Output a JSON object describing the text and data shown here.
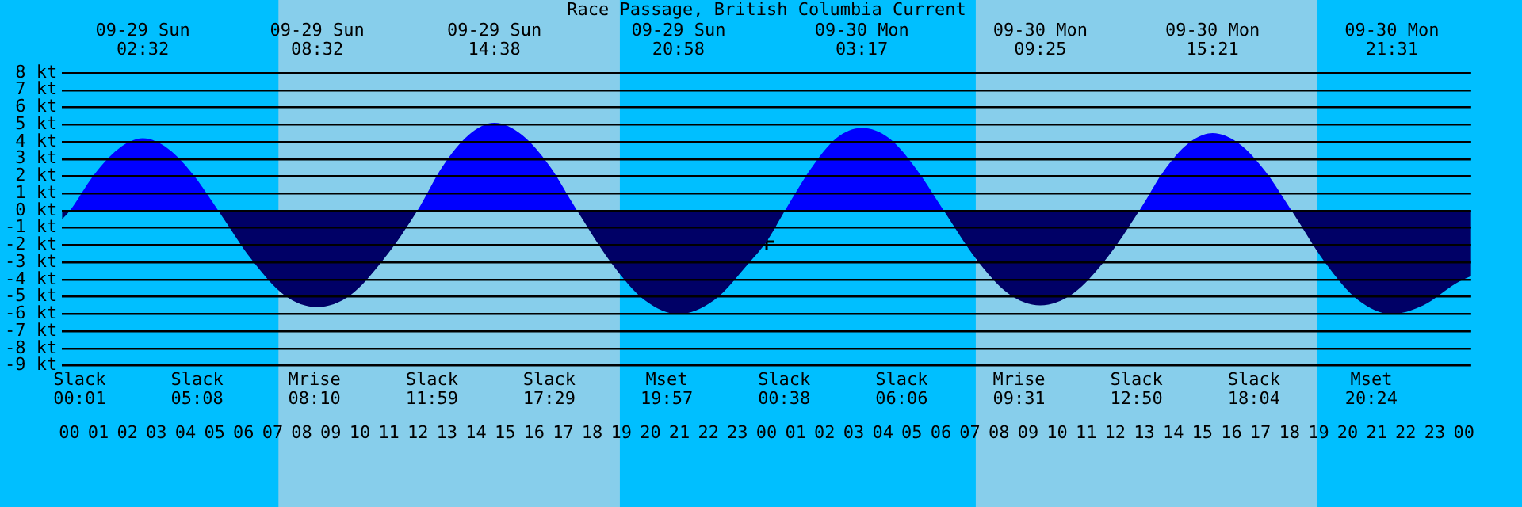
{
  "chart_data": {
    "type": "area",
    "title": "Race Passage, British Columbia Current",
    "x": [
      -0.25,
      0.02,
      0.86,
      1.7,
      2.53,
      3.4,
      4.26,
      5.13,
      6.26,
      7.4,
      8.53,
      9.68,
      10.83,
      11.98,
      12.86,
      13.75,
      14.63,
      15.58,
      16.53,
      17.48,
      18.64,
      19.81,
      20.97,
      22.19,
      23.41,
      24.0,
      24.63,
      25.51,
      26.4,
      27.28,
      28.22,
      29.16,
      30.1,
      31.21,
      32.31,
      33.42,
      34.56,
      35.69,
      36.83,
      37.67,
      38.51,
      39.35,
      40.26,
      41.16,
      42.07,
      43.22,
      44.37,
      45.52,
      46.6,
      47.75,
      48.25
    ],
    "series": [
      {
        "color": "#0000ff",
        "values": [
          -0.5,
          0,
          2.1,
          3.6,
          4.2,
          3.6,
          2.1,
          0,
          -2.8,
          -4.9,
          -5.6,
          -4.9,
          -2.8,
          0,
          2.6,
          4.4,
          5.1,
          4.4,
          2.6,
          0,
          -3.0,
          -5.2,
          -6.0,
          -5.2,
          -3.0,
          -1.8,
          0,
          2.4,
          4.2,
          4.8,
          4.2,
          2.4,
          0,
          -2.8,
          -4.8,
          -5.5,
          -4.8,
          -2.8,
          0,
          2.3,
          3.9,
          4.5,
          3.9,
          2.3,
          0,
          -3.0,
          -5.2,
          -6.0,
          -5.5,
          -4.2,
          -3.8
        ]
      },
      {
        "type": "scatter",
        "marker": "cross",
        "color": "#000000",
        "x": [
          24.0
        ],
        "values": [
          -1.8
        ]
      }
    ],
    "xlim": [
      -0.25,
      48.25
    ],
    "xticks": [
      {
        "value": 0,
        "label": "00"
      },
      {
        "value": 1,
        "label": "01"
      },
      {
        "value": 2,
        "label": "02"
      },
      {
        "value": 3,
        "label": "03"
      },
      {
        "value": 4,
        "label": "04"
      },
      {
        "value": 5,
        "label": "05"
      },
      {
        "value": 6,
        "label": "06"
      },
      {
        "value": 7,
        "label": "07"
      },
      {
        "value": 8,
        "label": "08"
      },
      {
        "value": 9,
        "label": "09"
      },
      {
        "value": 10,
        "label": "10"
      },
      {
        "value": 11,
        "label": "11"
      },
      {
        "value": 12,
        "label": "12"
      },
      {
        "value": 13,
        "label": "13"
      },
      {
        "value": 14,
        "label": "14"
      },
      {
        "value": 15,
        "label": "15"
      },
      {
        "value": 16,
        "label": "16"
      },
      {
        "value": 17,
        "label": "17"
      },
      {
        "value": 18,
        "label": "18"
      },
      {
        "value": 19,
        "label": "19"
      },
      {
        "value": 20,
        "label": "20"
      },
      {
        "value": 21,
        "label": "21"
      },
      {
        "value": 22,
        "label": "22"
      },
      {
        "value": 23,
        "label": "23"
      },
      {
        "value": 24,
        "label": "00"
      },
      {
        "value": 25,
        "label": "01"
      },
      {
        "value": 26,
        "label": "02"
      },
      {
        "value": 27,
        "label": "03"
      },
      {
        "value": 28,
        "label": "04"
      },
      {
        "value": 29,
        "label": "05"
      },
      {
        "value": 30,
        "label": "06"
      },
      {
        "value": 31,
        "label": "07"
      },
      {
        "value": 32,
        "label": "08"
      },
      {
        "value": 33,
        "label": "09"
      },
      {
        "value": 34,
        "label": "10"
      },
      {
        "value": 35,
        "label": "11"
      },
      {
        "value": 36,
        "label": "12"
      },
      {
        "value": 37,
        "label": "13"
      },
      {
        "value": 38,
        "label": "14"
      },
      {
        "value": 39,
        "label": "15"
      },
      {
        "value": 40,
        "label": "16"
      },
      {
        "value": 41,
        "label": "17"
      },
      {
        "value": 42,
        "label": "18"
      },
      {
        "value": 43,
        "label": "19"
      },
      {
        "value": 44,
        "label": "20"
      },
      {
        "value": 45,
        "label": "21"
      },
      {
        "value": 46,
        "label": "22"
      },
      {
        "value": 47,
        "label": "23"
      },
      {
        "value": 48,
        "label": "00"
      }
    ],
    "ylim": [
      -9,
      8
    ],
    "yticks": [
      {
        "value": 8,
        "label": "8 kt"
      },
      {
        "value": 7,
        "label": "7 kt"
      },
      {
        "value": 6,
        "label": "6 kt"
      },
      {
        "value": 5,
        "label": "5 kt"
      },
      {
        "value": 4,
        "label": "4 kt"
      },
      {
        "value": 3,
        "label": "3 kt"
      },
      {
        "value": 2,
        "label": "2 kt"
      },
      {
        "value": 1,
        "label": "1 kt"
      },
      {
        "value": 0,
        "label": "0 kt"
      },
      {
        "value": -1,
        "label": "-1 kt"
      },
      {
        "value": -2,
        "label": "-2 kt"
      },
      {
        "value": -3,
        "label": "-3 kt"
      },
      {
        "value": -4,
        "label": "-4 kt"
      },
      {
        "value": -5,
        "label": "-5 kt"
      },
      {
        "value": -6,
        "label": "-6 kt"
      },
      {
        "value": -7,
        "label": "-7 kt"
      },
      {
        "value": -8,
        "label": "-8 kt"
      },
      {
        "value": -9,
        "label": "-9 kt"
      }
    ],
    "grid": "y",
    "bands": [
      {
        "axis": "x",
        "from": 7.2,
        "to": 18.95,
        "color": "#87ceeb"
      },
      {
        "axis": "x",
        "from": 31.2,
        "to": 42.95,
        "color": "#87ceeb"
      }
    ],
    "annotations": [
      "09-29 Sun\n02:32",
      "09-29 Sun\n08:32",
      "09-29 Sun\n14:38",
      "09-29 Sun\n20:58",
      "09-30 Mon\n03:17",
      "09-30 Mon\n09:25",
      "09-30 Mon\n15:21",
      "09-30 Mon\n21:31",
      "Slack\n00:01",
      "Slack\n05:08",
      "Mrise\n08:10",
      "Slack\n11:59",
      "Slack\n17:29",
      "Mset\n19:57",
      "Slack\n00:38",
      "Slack\n06:06",
      "Mrise\n09:31",
      "Slack\n12:50",
      "Slack\n18:04",
      "Mset\n20:24"
    ]
  }
}
